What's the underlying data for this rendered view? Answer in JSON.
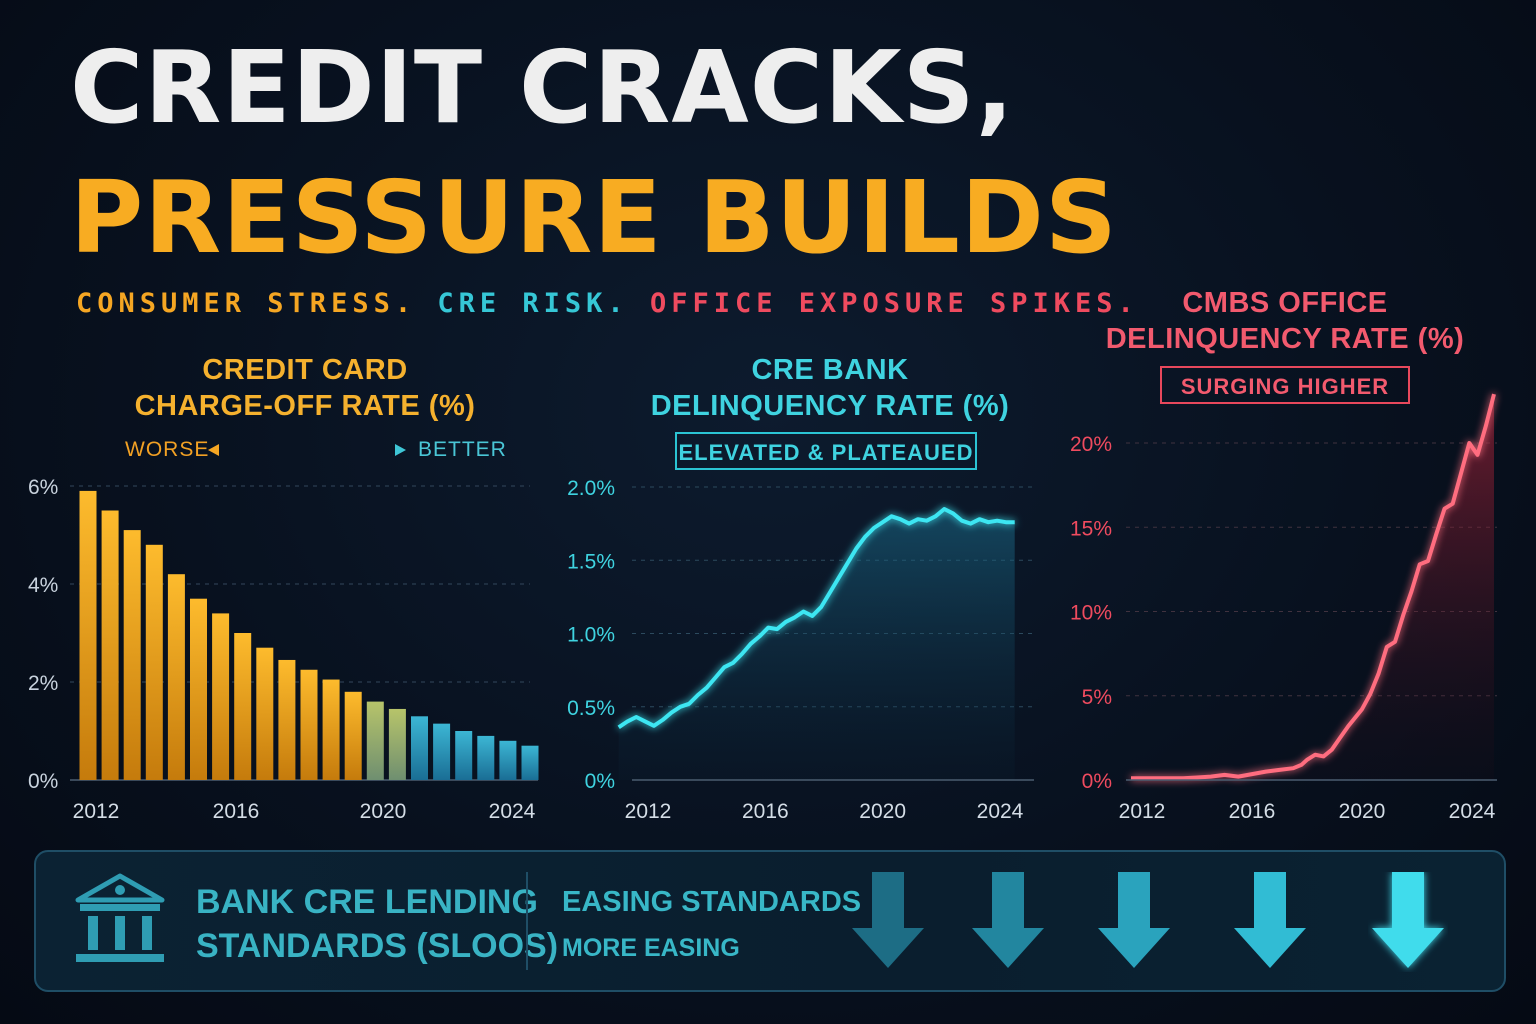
{
  "header": {
    "title_line1": "CREDIT CRACKS,",
    "title_line2": "PRESSURE BUILDS",
    "subtitle_a": "CONSUMER STRESS.",
    "subtitle_b": "CRE RISK.",
    "subtitle_c": "OFFICE EXPOSURE SPIKES."
  },
  "panel1": {
    "title_line1": "CREDIT CARD",
    "title_line2": "CHARGE-OFF RATE (%)",
    "worse_label": "WORSE",
    "better_label": "BETTER"
  },
  "panel2": {
    "title_line1": "CRE BANK",
    "title_line2": "DELINQUENCY RATE (%)",
    "badge": "ELEVATED & PLATEAUED"
  },
  "panel3": {
    "title_line1": "CMBS OFFICE",
    "title_line2": "DELINQUENCY RATE (%)",
    "badge": "SURGING HIGHER"
  },
  "footer": {
    "label_line1": "BANK CRE LENDING",
    "label_line2": "STANDARDS (SLOOS)",
    "easing_line1": "EASING STANDARDS",
    "easing_line2": "MORE EASING",
    "icon": "bank-building-icon",
    "arrow_icon": "down-arrow-icon"
  },
  "colors": {
    "orange": "#f5a623",
    "teal": "#3fd3e0",
    "red": "#f25a6e",
    "title_white": "#eeeeee"
  },
  "chart_data": [
    {
      "type": "bar",
      "title": "CREDIT CARD CHARGE-OFF RATE (%)",
      "ylim": [
        0,
        6
      ],
      "yticks": [
        "0%",
        "2%",
        "4%",
        "6%"
      ],
      "xticks": [
        "2012",
        "2016",
        "2020",
        "2024"
      ],
      "values": [
        5.9,
        5.5,
        5.1,
        4.8,
        4.2,
        3.7,
        3.4,
        3.0,
        2.7,
        2.45,
        2.25,
        2.05,
        1.8,
        1.6,
        1.45,
        1.3,
        1.15,
        1.0,
        0.9,
        0.8,
        0.7
      ],
      "grid": true,
      "gradient": "orange to teal"
    },
    {
      "type": "line",
      "title": "CRE BANK DELINQUENCY RATE (%)",
      "ylim": [
        0,
        2.0
      ],
      "yticks": [
        "0%",
        "0.5%",
        "1.0%",
        "1.5%",
        "2.0%"
      ],
      "xticks": [
        "2012",
        "2016",
        "2020",
        "2024"
      ],
      "x": [
        2011.0,
        2011.3,
        2011.6,
        2011.9,
        2012.2,
        2012.5,
        2012.8,
        2013.1,
        2013.4,
        2013.7,
        2014.0,
        2014.3,
        2014.6,
        2014.9,
        2015.2,
        2015.5,
        2015.8,
        2016.1,
        2016.4,
        2016.7,
        2017.0,
        2017.3,
        2017.6,
        2017.9,
        2018.2,
        2018.5,
        2018.8,
        2019.1,
        2019.4,
        2019.7,
        2020.0,
        2020.3,
        2020.6,
        2020.9,
        2021.2,
        2021.5,
        2021.8,
        2022.1,
        2022.4,
        2022.7,
        2023.0,
        2023.3,
        2023.6,
        2023.9,
        2024.2,
        2024.5
      ],
      "y": [
        0.36,
        0.4,
        0.43,
        0.4,
        0.37,
        0.41,
        0.46,
        0.5,
        0.52,
        0.58,
        0.63,
        0.7,
        0.77,
        0.8,
        0.86,
        0.93,
        0.98,
        1.04,
        1.03,
        1.08,
        1.11,
        1.15,
        1.12,
        1.18,
        1.28,
        1.38,
        1.48,
        1.58,
        1.66,
        1.72,
        1.76,
        1.8,
        1.78,
        1.75,
        1.78,
        1.77,
        1.8,
        1.85,
        1.82,
        1.77,
        1.75,
        1.78,
        1.76,
        1.77,
        1.76,
        1.76
      ],
      "grid": true
    },
    {
      "type": "area",
      "title": "CMBS OFFICE DELINQUENCY RATE (%)",
      "ylim": [
        0,
        22
      ],
      "yticks": [
        "0%",
        "5%",
        "10%",
        "15%",
        "20%"
      ],
      "xticks": [
        "2012",
        "2016",
        "2020",
        "2024"
      ],
      "x": [
        2011.6,
        2012.5,
        2013.5,
        2014.0,
        2014.5,
        2015.0,
        2015.5,
        2016.0,
        2016.5,
        2017.0,
        2017.5,
        2017.8,
        2018.0,
        2018.3,
        2018.6,
        2018.9,
        2019.2,
        2019.5,
        2019.8,
        2020.0,
        2020.3,
        2020.6,
        2020.9,
        2021.2,
        2021.5,
        2021.8,
        2022.1,
        2022.4,
        2022.7,
        2023.0,
        2023.3,
        2023.6,
        2023.9,
        2024.2,
        2024.5,
        2024.8
      ],
      "y": [
        0.1,
        0.1,
        0.1,
        0.15,
        0.2,
        0.3,
        0.2,
        0.35,
        0.5,
        0.6,
        0.7,
        0.9,
        1.2,
        1.5,
        1.4,
        1.8,
        2.5,
        3.2,
        3.8,
        4.2,
        5.1,
        6.3,
        7.9,
        8.2,
        9.8,
        11.2,
        12.8,
        13.0,
        14.6,
        16.1,
        16.4,
        18.2,
        20.0,
        19.3,
        21.0,
        22.9
      ],
      "grid": true
    }
  ]
}
